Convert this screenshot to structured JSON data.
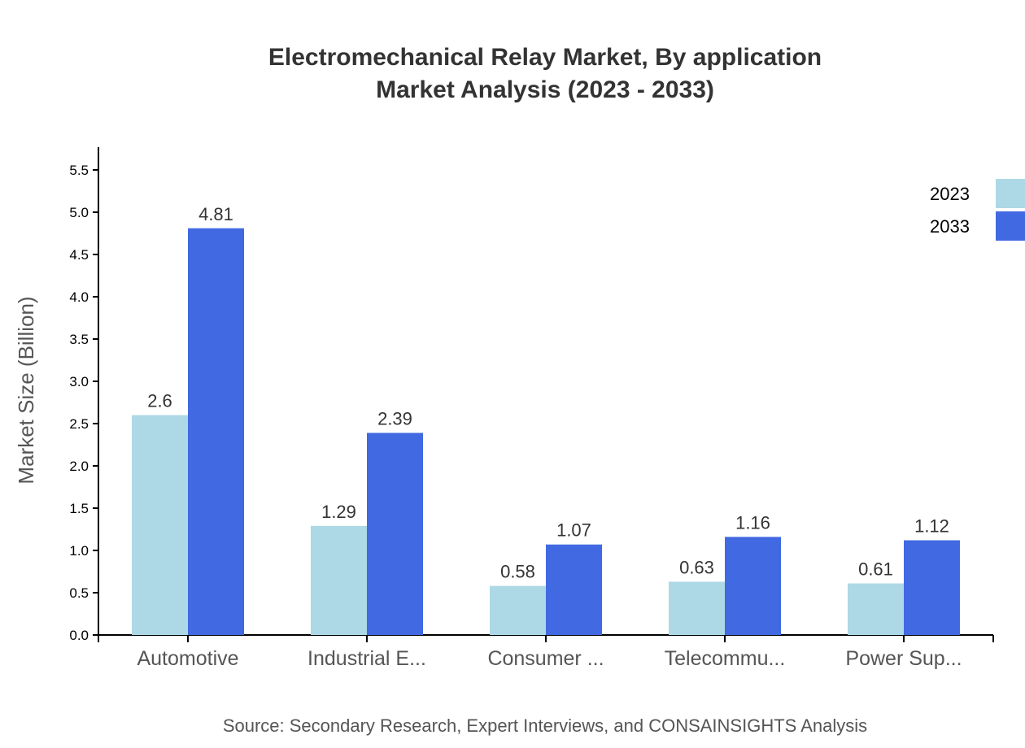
{
  "chart_data": {
    "type": "bar",
    "title": "Electromechanical Relay Market, By application",
    "subtitle": "Market Analysis (2023 - 2033)",
    "xlabel": "",
    "ylabel": "Market Size (Billion)",
    "ylim": [
      0,
      5.77
    ],
    "yticks": [
      "0.0",
      "0.5",
      "1.0",
      "1.5",
      "2.0",
      "2.5",
      "3.0",
      "3.5",
      "4.0",
      "4.5",
      "5.0",
      "5.5"
    ],
    "categories": [
      "Automotive",
      "Industrial E...",
      "Consumer ...",
      "Telecommu...",
      "Power Sup..."
    ],
    "series": [
      {
        "name": "2023",
        "color": "#add8e6",
        "values": [
          2.6,
          1.29,
          0.58,
          0.63,
          0.61
        ],
        "labels": [
          "2.6",
          "1.29",
          "0.58",
          "0.63",
          "0.61"
        ]
      },
      {
        "name": "2033",
        "color": "#4169e1",
        "values": [
          4.81,
          2.39,
          1.07,
          1.16,
          1.12
        ],
        "labels": [
          "4.81",
          "2.39",
          "1.07",
          "1.16",
          "1.12"
        ]
      }
    ],
    "grid": false,
    "legend_position": "top-right",
    "source": "Source: Secondary Research, Expert Interviews, and CONSAINSIGHTS Analysis"
  }
}
